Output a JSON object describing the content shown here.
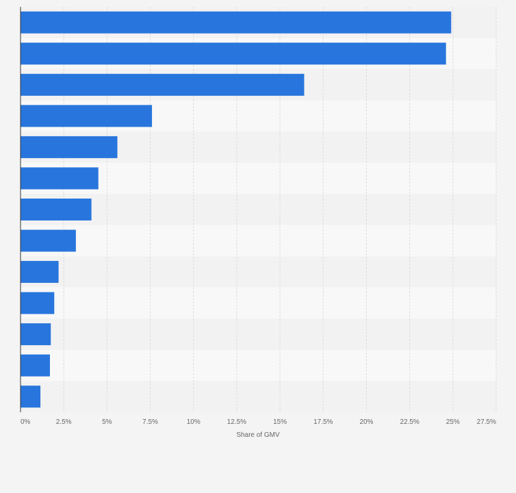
{
  "chart_data": {
    "type": "bar",
    "orientation": "horizontal",
    "title": "",
    "ylabel": "",
    "xlabel": "Share of GMV",
    "xlim": [
      0,
      27.5
    ],
    "x_ticks": [
      "0%",
      "2.5%",
      "5%",
      "7.5%",
      "10%",
      "12.5%",
      "15%",
      "17.5%",
      "20%",
      "22.5%",
      "25%",
      "27.5%"
    ],
    "categories": [
      "",
      "",
      "",
      "",
      "",
      "",
      "",
      "",
      "",
      "",
      "",
      "",
      ""
    ],
    "values": [
      24.9,
      24.6,
      16.4,
      7.6,
      5.6,
      4.5,
      4.1,
      3.2,
      2.2,
      1.95,
      1.75,
      1.7,
      1.15
    ],
    "bar_color": "#2876dd",
    "grid": true,
    "legend": "none"
  }
}
